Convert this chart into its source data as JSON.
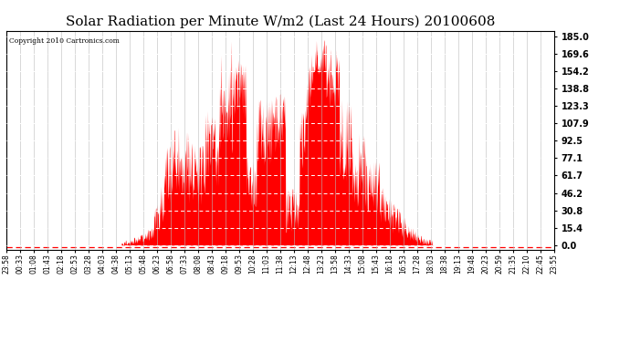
{
  "title": "Solar Radiation per Minute W/m2 (Last 24 Hours) 20100608",
  "copyright_text": "Copyright 2010 Cartronics.com",
  "ylabel_right": [
    "0.0",
    "15.4",
    "30.8",
    "46.2",
    "61.7",
    "77.1",
    "92.5",
    "107.9",
    "123.3",
    "138.8",
    "154.2",
    "169.6",
    "185.0"
  ],
  "yvalues": [
    0.0,
    15.4,
    30.8,
    46.2,
    61.7,
    77.1,
    92.5,
    107.9,
    123.3,
    138.8,
    154.2,
    169.6,
    185.0
  ],
  "ylim": [
    0,
    185.0
  ],
  "bar_color": "#FF0000",
  "background_color": "#FFFFFF",
  "baseline_color": "#FF0000",
  "title_fontsize": 11,
  "x_tick_labels": [
    "23:58",
    "00:33",
    "01:08",
    "01:43",
    "02:18",
    "02:53",
    "03:28",
    "04:03",
    "04:38",
    "05:13",
    "05:48",
    "06:23",
    "06:58",
    "07:33",
    "08:08",
    "08:43",
    "09:18",
    "09:53",
    "10:28",
    "11:03",
    "11:38",
    "12:13",
    "12:48",
    "13:23",
    "13:58",
    "14:33",
    "15:08",
    "15:43",
    "16:18",
    "16:53",
    "17:28",
    "18:03",
    "18:38",
    "19:13",
    "19:48",
    "20:23",
    "20:59",
    "21:35",
    "22:10",
    "22:45",
    "23:55"
  ],
  "n_points": 1440,
  "seed": 42
}
